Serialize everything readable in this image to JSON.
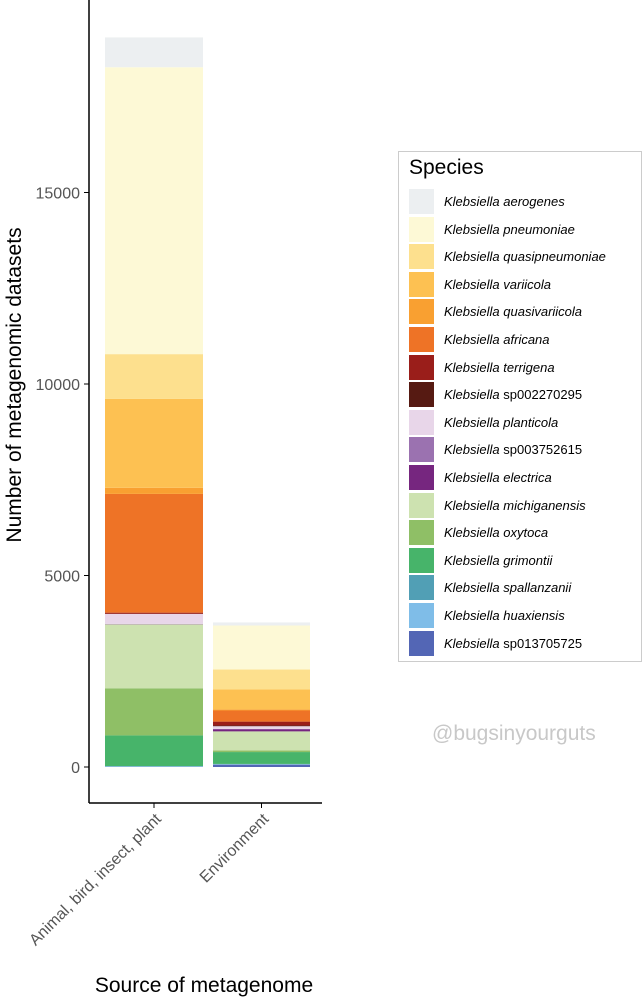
{
  "chart_data": {
    "type": "stacked-bar",
    "xlabel": "Source of metagenome",
    "ylabel": "Number of metagenomic datasets",
    "ylim": [
      -900,
      20000
    ],
    "yticks": [
      0,
      5000,
      10000,
      15000
    ],
    "categories": [
      "Animal, bird, insect, plant",
      "Environment"
    ],
    "legend_title": "Species",
    "legend_position": "right",
    "grid": false,
    "series": [
      {
        "genus": "Klebsiella",
        "epithet": "aerogenes",
        "color": "#eceff1",
        "values": [
          780,
          80
        ]
      },
      {
        "genus": "Klebsiella",
        "epithet": "pneumoniae",
        "color": "#fdf9d6",
        "values": [
          7490,
          1150
        ]
      },
      {
        "genus": "Klebsiella",
        "epithet": "quasipneumoniae",
        "color": "#fde08e",
        "values": [
          1170,
          520
        ]
      },
      {
        "genus": "Klebsiella",
        "epithet": "variicola",
        "color": "#fdc152",
        "values": [
          2320,
          520
        ]
      },
      {
        "genus": "Klebsiella",
        "epithet": "quasivariicola",
        "color": "#f9a031",
        "values": [
          160,
          30
        ]
      },
      {
        "genus": "Klebsiella",
        "epithet": "africana",
        "color": "#ee7326",
        "values": [
          3100,
          290
        ]
      },
      {
        "genus": "Klebsiella",
        "epithet": "terrigena",
        "color": "#9a1e1a",
        "values": [
          30,
          100
        ]
      },
      {
        "genus": "Klebsiella",
        "epithet": "sp002270295",
        "color": "#561a12",
        "values": [
          5,
          20
        ]
      },
      {
        "genus": "Klebsiella",
        "epithet": "planticola",
        "color": "#e8d6e9",
        "values": [
          260,
          70
        ]
      },
      {
        "genus": "Klebsiella",
        "epithet": "sp003752615",
        "color": "#9b72b0",
        "values": [
          5,
          15
        ]
      },
      {
        "genus": "Klebsiella",
        "epithet": "electrica",
        "color": "#76267f",
        "values": [
          5,
          50
        ]
      },
      {
        "genus": "Klebsiella",
        "epithet": "michiganensis",
        "color": "#cde2b0",
        "values": [
          1670,
          500
        ]
      },
      {
        "genus": "Klebsiella",
        "epithet": "oxytoca",
        "color": "#8fbf66",
        "values": [
          1230,
          40
        ]
      },
      {
        "genus": "Klebsiella",
        "epithet": "grimontii",
        "color": "#47b46a",
        "values": [
          800,
          310
        ]
      },
      {
        "genus": "Klebsiella",
        "epithet": "spallanzanii",
        "color": "#519fb5",
        "values": [
          10,
          10
        ]
      },
      {
        "genus": "Klebsiella",
        "epithet": "huaxiensis",
        "color": "#7fbde8",
        "values": [
          10,
          10
        ]
      },
      {
        "genus": "Klebsiella",
        "epithet": "sp013705725",
        "color": "#5366b5",
        "values": [
          5,
          60
        ]
      }
    ]
  },
  "watermark": "@bugsinyourguts"
}
